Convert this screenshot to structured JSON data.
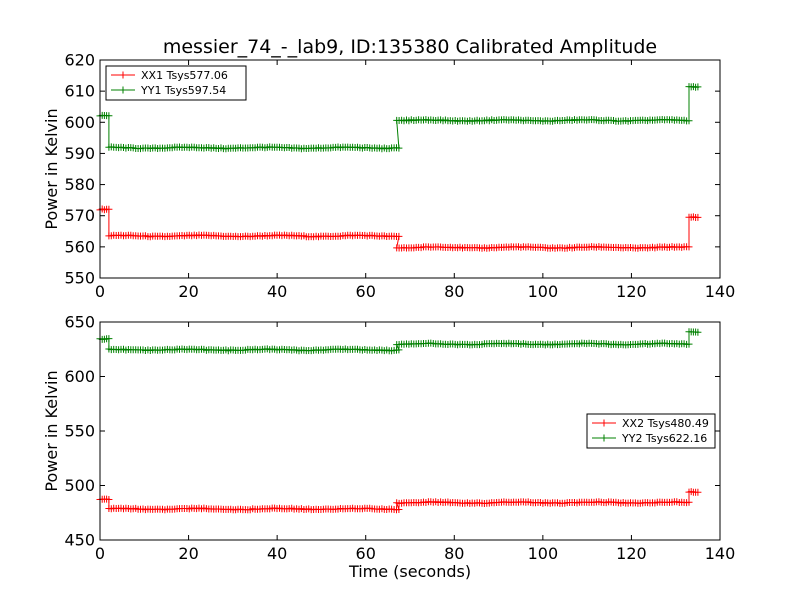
{
  "figure": {
    "title": "messier_74_-_lab9, ID:135380 Calibrated Amplitude"
  },
  "chart_data": [
    {
      "type": "line",
      "ylabel": "Power in Kelvin",
      "xlabel": "",
      "xlim": [
        0,
        140
      ],
      "ylim": [
        550,
        620
      ],
      "xticks": [
        "0",
        "20",
        "40",
        "60",
        "80",
        "100",
        "120",
        "140"
      ],
      "yticks": [
        "550",
        "560",
        "570",
        "580",
        "590",
        "600",
        "610",
        "620"
      ],
      "legend_position": "top-left",
      "grid": false,
      "series": [
        {
          "name": "XX1 Tsys577.06",
          "color": "#ff0000",
          "segments": [
            {
              "x0": 0,
              "x1": 2,
              "base": 572
            },
            {
              "x0": 2,
              "x1": 67.5,
              "base": 563.5
            },
            {
              "x0": 67,
              "x1": 133,
              "base": 559.8
            },
            {
              "x0": 133,
              "x1": 135,
              "base": 569.5
            }
          ]
        },
        {
          "name": "YY1 Tsys597.54",
          "color": "#008000",
          "segments": [
            {
              "x0": 0,
              "x1": 2,
              "base": 602
            },
            {
              "x0": 2,
              "x1": 67.5,
              "base": 591.8
            },
            {
              "x0": 67,
              "x1": 133,
              "base": 600.6
            },
            {
              "x0": 133,
              "x1": 135,
              "base": 611.5
            }
          ]
        }
      ]
    },
    {
      "type": "line",
      "ylabel": "Power in Kelvin",
      "xlabel": "Time (seconds)",
      "xlim": [
        0,
        140
      ],
      "ylim": [
        450,
        650
      ],
      "xticks": [
        "0",
        "20",
        "40",
        "60",
        "80",
        "100",
        "120",
        "140"
      ],
      "yticks": [
        "450",
        "500",
        "550",
        "600",
        "650"
      ],
      "legend_position": "center-right",
      "grid": false,
      "series": [
        {
          "name": "XX2 Tsys480.49",
          "color": "#ff0000",
          "segments": [
            {
              "x0": 0,
              "x1": 2,
              "base": 487
            },
            {
              "x0": 2,
              "x1": 67.5,
              "base": 478.5
            },
            {
              "x0": 67,
              "x1": 133,
              "base": 484.3
            },
            {
              "x0": 133,
              "x1": 135,
              "base": 494
            }
          ]
        },
        {
          "name": "YY2 Tsys622.16",
          "color": "#008000",
          "segments": [
            {
              "x0": 0,
              "x1": 2,
              "base": 634
            },
            {
              "x0": 2,
              "x1": 67.5,
              "base": 624.5
            },
            {
              "x0": 67,
              "x1": 133,
              "base": 629.8
            },
            {
              "x0": 133,
              "x1": 135,
              "base": 641
            }
          ]
        }
      ]
    }
  ]
}
